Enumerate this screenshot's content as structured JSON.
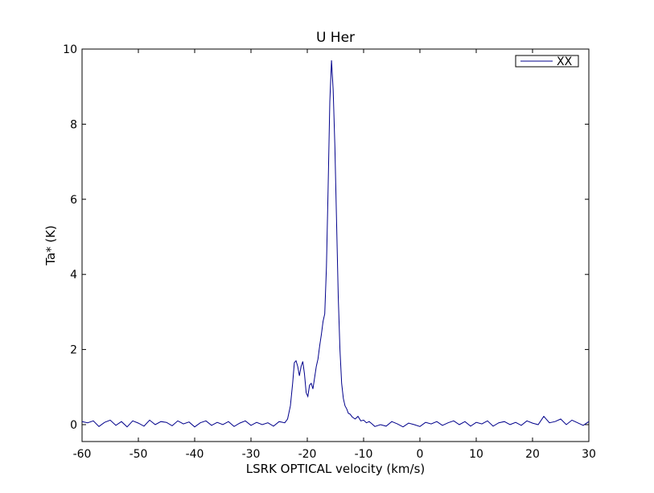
{
  "chart_data": {
    "type": "line",
    "title": "U Her",
    "xlabel": "LSRK OPTICAL velocity (km/s)",
    "ylabel": "Ta* (K)",
    "xlim": [
      -60,
      30
    ],
    "ylim": [
      -0.45,
      10
    ],
    "xticks": [
      -60,
      -50,
      -40,
      -30,
      -20,
      -10,
      0,
      10,
      20,
      30
    ],
    "yticks": [
      0,
      2,
      4,
      6,
      8,
      10
    ],
    "grid": false,
    "legend_position": "top-right",
    "series": [
      {
        "name": "XX",
        "color": "#00008b",
        "x": [
          -60,
          -59,
          -58,
          -57,
          -56,
          -55,
          -54,
          -53,
          -52,
          -51,
          -50,
          -49,
          -48,
          -47,
          -46,
          -45,
          -44,
          -43,
          -42,
          -41,
          -40,
          -39,
          -38,
          -37,
          -36,
          -35,
          -34,
          -33,
          -32,
          -31,
          -30,
          -29,
          -28,
          -27,
          -26,
          -25,
          -24,
          -23.5,
          -23,
          -22.6,
          -22.3,
          -22.0,
          -21.7,
          -21.4,
          -21.1,
          -20.8,
          -20.5,
          -20.2,
          -19.9,
          -19.6,
          -19.3,
          -19.0,
          -18.7,
          -18.4,
          -18.1,
          -17.8,
          -17.5,
          -17.2,
          -16.9,
          -16.6,
          -16.3,
          -16.0,
          -15.7,
          -15.4,
          -15.1,
          -14.8,
          -14.5,
          -14.2,
          -13.9,
          -13.6,
          -13.3,
          -13.0,
          -12.7,
          -12.4,
          -12.0,
          -11.5,
          -11,
          -10.5,
          -10,
          -9.5,
          -9,
          -8.5,
          -8,
          -7,
          -6,
          -5,
          -4,
          -3,
          -2,
          -1,
          0,
          1,
          2,
          3,
          4,
          5,
          6,
          7,
          8,
          9,
          10,
          11,
          12,
          13,
          14,
          15,
          16,
          17,
          18,
          19,
          20,
          21,
          22,
          23,
          24,
          25,
          26,
          27,
          28,
          29,
          30
        ],
        "y": [
          0.08,
          0.05,
          0.1,
          -0.05,
          0.06,
          0.12,
          -0.02,
          0.08,
          -0.06,
          0.1,
          0.04,
          -0.04,
          0.12,
          0.0,
          0.08,
          0.06,
          -0.03,
          0.1,
          0.02,
          0.07,
          -0.06,
          0.05,
          0.1,
          -0.02,
          0.06,
          0.0,
          0.08,
          -0.05,
          0.04,
          0.1,
          -0.02,
          0.06,
          0.0,
          0.05,
          -0.04,
          0.08,
          0.05,
          0.15,
          0.5,
          1.1,
          1.65,
          1.7,
          1.55,
          1.3,
          1.55,
          1.68,
          1.35,
          0.85,
          0.75,
          1.05,
          1.1,
          0.95,
          1.25,
          1.55,
          1.75,
          2.1,
          2.4,
          2.75,
          2.95,
          4.2,
          6.3,
          8.6,
          9.7,
          8.9,
          7.4,
          5.4,
          3.4,
          2.0,
          1.1,
          0.7,
          0.5,
          0.42,
          0.3,
          0.28,
          0.2,
          0.15,
          0.22,
          0.1,
          0.12,
          0.05,
          0.08,
          0.02,
          -0.05,
          0.0,
          -0.04,
          0.08,
          0.02,
          -0.06,
          0.04,
          0.0,
          -0.05,
          0.06,
          0.02,
          0.08,
          -0.02,
          0.05,
          0.1,
          0.0,
          0.08,
          -0.04,
          0.06,
          0.02,
          0.1,
          -0.04,
          0.05,
          0.08,
          0.0,
          0.06,
          -0.02,
          0.1,
          0.04,
          0.0,
          0.22,
          0.05,
          0.08,
          0.15,
          0.0,
          0.12,
          0.05,
          -0.02,
          0.08
        ]
      }
    ]
  }
}
